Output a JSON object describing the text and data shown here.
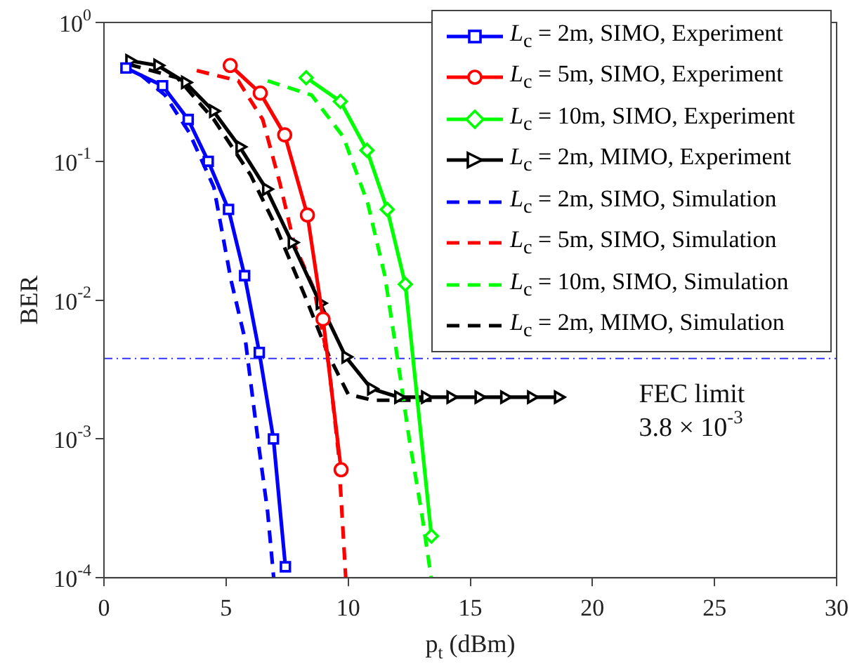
{
  "chart_data": {
    "type": "line",
    "xlabel": "p$_{t}$ (dBm)",
    "ylabel": "BER",
    "log": "y",
    "xlim": [
      0,
      30
    ],
    "xticks": [
      0,
      5,
      10,
      15,
      20,
      25,
      30
    ],
    "ylim": [
      0.0001,
      1
    ],
    "yticks": [
      {
        "value": 0.0001,
        "label": "10$^{-4}$"
      },
      {
        "value": 0.001,
        "label": "10$^{-3}$"
      },
      {
        "value": 0.01,
        "label": "10$^{-2}$"
      },
      {
        "value": 0.1,
        "label": "10$^{-1}$"
      },
      {
        "value": 1,
        "label": "10$^{0}$"
      }
    ],
    "grid": false,
    "legend": "top right",
    "ref_lines": [
      {
        "axis": "y",
        "value": 0.0038,
        "label": "FEC limit",
        "color": "#3333ff",
        "line_style": "dashed"
      }
    ],
    "annotations": [
      "3.8 × 10$^{-3}$"
    ],
    "series": [
      {
        "name": "L$_{c}$ = 2m, SIMO, Experiment",
        "color": "#0000ff",
        "marker": "square",
        "line_style": "solid",
        "x": [
          0.9,
          2.4,
          3.45,
          4.27,
          5.1,
          5.76,
          6.36,
          6.94,
          7.43
        ],
        "values": [
          0.47,
          0.35,
          0.2,
          0.1,
          0.045,
          0.015,
          0.0042,
          0.001,
          0.00012
        ]
      },
      {
        "name": "L$_{c}$ = 5m, SIMO, Experiment",
        "color": "#ff0000",
        "marker": "circle",
        "line_style": "solid",
        "x": [
          5.17,
          6.4,
          7.4,
          8.33,
          8.97,
          9.71
        ],
        "values": [
          0.49,
          0.31,
          0.155,
          0.041,
          0.0073,
          0.0006
        ]
      },
      {
        "name": "L$_{c}$ = 10m, SIMO, Experiment",
        "color": "#00ff00",
        "marker": "diamond",
        "line_style": "solid",
        "x": [
          8.28,
          9.68,
          10.77,
          11.6,
          12.34,
          13.41
        ],
        "values": [
          0.4,
          0.27,
          0.12,
          0.045,
          0.013,
          0.0002
        ]
      },
      {
        "name": "L$_{c}$ = 2m, MIMO, Experiment",
        "color": "#000000",
        "marker": "triangle",
        "line_style": "solid",
        "x": [
          1.05,
          2.2,
          3.33,
          4.48,
          5.56,
          6.65,
          7.7,
          8.85,
          9.9,
          10.95,
          12.06,
          13.16,
          14.2,
          15.35,
          16.4,
          17.5,
          18.6
        ],
        "values": [
          0.53,
          0.49,
          0.37,
          0.23,
          0.127,
          0.063,
          0.026,
          0.0095,
          0.0039,
          0.0023,
          0.002,
          0.002,
          0.002,
          0.002,
          0.002,
          0.002,
          0.002
        ]
      },
      {
        "name": "L$_{c}$ = 2m, SIMO, Simulation",
        "color": "#0000ff",
        "marker": "none",
        "line_style": "dashed",
        "x": [
          1.5,
          2.5,
          3.5,
          4.5,
          5.2,
          5.8,
          6.3,
          6.7,
          6.95
        ],
        "values": [
          0.42,
          0.3,
          0.16,
          0.065,
          0.014,
          0.005,
          0.001,
          0.0003,
          0.0001
        ]
      },
      {
        "name": "L$_{c}$ = 5m, SIMO, Simulation",
        "color": "#ff0000",
        "marker": "none",
        "line_style": "dashed",
        "x": [
          3.8,
          5.5,
          6.5,
          7.2,
          7.8,
          8.6,
          9.2,
          9.6,
          9.9
        ],
        "values": [
          0.45,
          0.38,
          0.2,
          0.07,
          0.025,
          0.012,
          0.0035,
          0.0008,
          0.0001
        ]
      },
      {
        "name": "L$_{c}$ = 10m, SIMO, Simulation",
        "color": "#00ff00",
        "marker": "none",
        "line_style": "dashed",
        "x": [
          6.7,
          8.5,
          9.8,
          10.8,
          11.5,
          12,
          12.5,
          13,
          13.4
        ],
        "values": [
          0.38,
          0.3,
          0.15,
          0.05,
          0.015,
          0.004,
          0.001,
          0.0003,
          0.0001
        ]
      },
      {
        "name": "L$_{c}$ = 2m, MIMO, Simulation",
        "color": "#000000",
        "marker": "none",
        "line_style": "dashed",
        "x": [
          1,
          3,
          4.5,
          6,
          7,
          8.3,
          9.2,
          10,
          11,
          13.5
        ],
        "values": [
          0.5,
          0.4,
          0.2,
          0.08,
          0.035,
          0.01,
          0.004,
          0.0021,
          0.0019,
          0.0019
        ]
      }
    ]
  }
}
